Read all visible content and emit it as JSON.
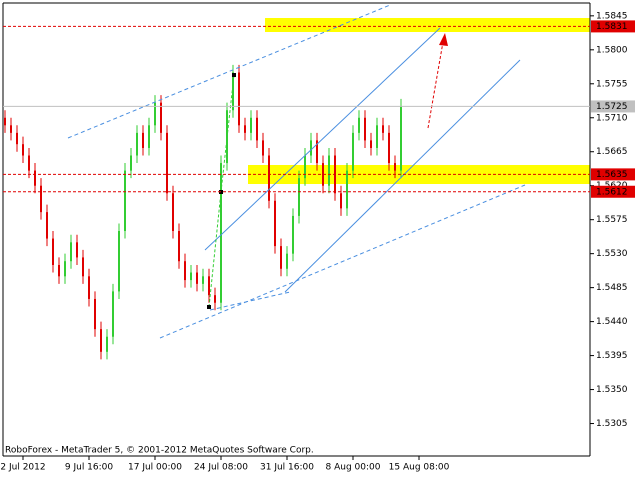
{
  "chart_data": {
    "type": "ohlc",
    "footer": "RoboForex - MetaTrader 5, © 2001-2012 MetaQuotes Software Corp.",
    "categories": [
      null,
      null,
      null,
      "2 Jul 2012",
      null,
      null,
      null,
      null,
      null,
      null,
      null,
      null,
      null,
      null,
      "9 Jul 16:00",
      null,
      null,
      null,
      null,
      null,
      null,
      null,
      null,
      null,
      null,
      "17 Jul 00:00",
      null,
      null,
      null,
      null,
      null,
      null,
      null,
      null,
      null,
      null,
      "24 Jul 08:00",
      null,
      null,
      null,
      null,
      null,
      null,
      null,
      null,
      null,
      null,
      "31 Jul 16:00",
      null,
      null,
      null,
      null,
      null,
      null,
      null,
      null,
      null,
      null,
      "8 Aug 00:00",
      null,
      null,
      null,
      null,
      null,
      null,
      null,
      null,
      null,
      null,
      "15 Aug 08:00"
    ],
    "open": [
      1.571,
      1.57,
      1.569,
      1.5675,
      1.566,
      1.564,
      1.562,
      1.5585,
      1.555,
      1.5515,
      1.55,
      1.552,
      1.5545,
      1.5525,
      1.55,
      1.547,
      1.543,
      1.54,
      1.542,
      1.548,
      1.556,
      1.564,
      1.566,
      1.569,
      1.567,
      1.57,
      1.573,
      1.569,
      1.561,
      1.556,
      1.552,
      1.5495,
      1.5505,
      1.549,
      1.55,
      1.5475,
      1.5465,
      1.565,
      1.572,
      1.577,
      1.57,
      1.569,
      1.571,
      1.568,
      1.566,
      1.56,
      1.554,
      1.551,
      1.553,
      1.558,
      1.563,
      1.566,
      1.568,
      1.565,
      1.562,
      1.566,
      1.561,
      1.559,
      1.564,
      1.569,
      1.571,
      1.568,
      1.567,
      1.57,
      1.569,
      1.565,
      1.564,
      null,
      null,
      null
    ],
    "high": [
      1.572,
      1.571,
      1.57,
      1.5685,
      1.567,
      1.565,
      1.563,
      1.5595,
      1.556,
      1.5525,
      1.553,
      1.5555,
      1.5555,
      1.5535,
      1.551,
      1.548,
      1.544,
      1.543,
      1.549,
      1.557,
      1.565,
      1.567,
      1.57,
      1.57,
      1.571,
      1.574,
      1.574,
      1.57,
      1.562,
      1.557,
      1.553,
      1.5515,
      1.5515,
      1.551,
      1.551,
      1.5485,
      1.566,
      1.573,
      1.578,
      1.578,
      1.571,
      1.572,
      1.572,
      1.569,
      1.567,
      1.561,
      1.555,
      1.554,
      1.559,
      1.564,
      1.567,
      1.569,
      1.569,
      1.566,
      1.567,
      1.567,
      1.562,
      1.565,
      1.57,
      1.572,
      1.572,
      1.569,
      1.571,
      1.571,
      1.57,
      1.566,
      1.5735,
      null,
      null,
      null
    ],
    "low": [
      1.569,
      1.568,
      1.5665,
      1.565,
      1.563,
      1.561,
      1.5575,
      1.554,
      1.5505,
      1.549,
      1.549,
      1.551,
      1.5515,
      1.549,
      1.546,
      1.542,
      1.539,
      1.539,
      1.541,
      1.547,
      1.555,
      1.563,
      1.565,
      1.566,
      1.566,
      1.569,
      1.568,
      1.56,
      1.555,
      1.551,
      1.5485,
      1.5485,
      1.548,
      1.548,
      1.5465,
      1.5455,
      1.5455,
      1.564,
      1.571,
      1.569,
      1.568,
      1.568,
      1.567,
      1.565,
      1.559,
      1.553,
      1.55,
      1.55,
      1.552,
      1.557,
      1.562,
      1.565,
      1.564,
      1.561,
      1.561,
      1.56,
      1.558,
      1.558,
      1.563,
      1.568,
      1.567,
      1.566,
      1.566,
      1.568,
      1.564,
      1.563,
      1.563,
      null,
      null,
      null
    ],
    "close": [
      1.57,
      1.569,
      1.5675,
      1.566,
      1.564,
      1.562,
      1.5585,
      1.555,
      1.5515,
      1.55,
      1.552,
      1.5545,
      1.5525,
      1.55,
      1.547,
      1.543,
      1.54,
      1.542,
      1.548,
      1.556,
      1.564,
      1.566,
      1.569,
      1.567,
      1.57,
      1.573,
      1.569,
      1.561,
      1.556,
      1.552,
      1.5495,
      1.5505,
      1.549,
      1.55,
      1.5475,
      1.5465,
      1.565,
      1.572,
      1.577,
      1.57,
      1.569,
      1.571,
      1.568,
      1.566,
      1.56,
      1.554,
      1.551,
      1.553,
      1.558,
      1.563,
      1.566,
      1.568,
      1.565,
      1.562,
      1.566,
      1.561,
      1.559,
      1.564,
      1.569,
      1.571,
      1.568,
      1.567,
      1.57,
      1.569,
      1.565,
      1.564,
      1.5725,
      null,
      null,
      null
    ],
    "up_color": "#32cd32",
    "down_color": "#e00000",
    "ylim": [
      1.5262,
      1.5862
    ],
    "yticks": [
      1.5845,
      {
        "value": 1.58,
        "label": "1.5800"
      },
      1.5755,
      {
        "value": 1.571,
        "label": "1.5710"
      },
      1.5665,
      {
        "value": 1.562,
        "label": "1.5620"
      },
      1.5575,
      {
        "value": 1.553,
        "label": "1.5530"
      },
      1.5485,
      {
        "value": 1.544,
        "label": "1.5440"
      },
      1.5395,
      {
        "value": 1.535,
        "label": "1.5350"
      },
      1.5305
    ],
    "levels": [
      1.5831,
      1.5635,
      1.5612
    ],
    "level_color": "#e00000",
    "last_price": 1.5725
  }
}
